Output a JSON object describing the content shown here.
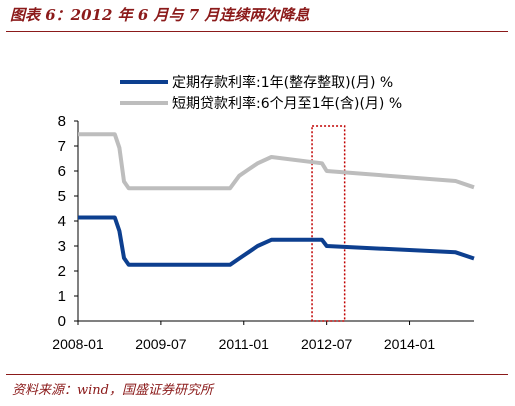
{
  "header": {
    "title": "图表 6：2012 年 6 月与 7 月连续两次降息"
  },
  "footer": {
    "source": "资料来源：wind，国盛证券研究所"
  },
  "colors": {
    "accent": "#8b1a1a",
    "deposit": "#0d3f8f",
    "loan": "#bdbdbd",
    "highlight": "#c00000"
  },
  "chart_data": {
    "type": "line",
    "ylim": [
      0,
      8
    ],
    "yticks": [
      "0",
      "1",
      "2",
      "3",
      "4",
      "5",
      "6",
      "7",
      "8"
    ],
    "xlim": [
      "2008-01",
      "2015-03"
    ],
    "xticks": [
      "2008-01",
      "2009-07",
      "2011-01",
      "2012-07",
      "2014-01"
    ],
    "grid": false,
    "legend": "top",
    "highlight_range": [
      "2012-06",
      "2012-07"
    ],
    "series": [
      {
        "name": "定期存款利率:1年(整存整取)(月) %",
        "color": "#0d3f8f",
        "points": [
          [
            "2008-01",
            4.14
          ],
          [
            "2008-09",
            4.14
          ],
          [
            "2008-10",
            3.6
          ],
          [
            "2008-11",
            2.52
          ],
          [
            "2008-12",
            2.25
          ],
          [
            "2010-10",
            2.25
          ],
          [
            "2010-12",
            2.5
          ],
          [
            "2011-02",
            2.75
          ],
          [
            "2011-04",
            3.0
          ],
          [
            "2011-07",
            3.25
          ],
          [
            "2012-06",
            3.25
          ],
          [
            "2012-07",
            3.0
          ],
          [
            "2014-11",
            2.75
          ],
          [
            "2015-03",
            2.5
          ]
        ]
      },
      {
        "name": "短期贷款利率:6个月至1年(含)(月) %",
        "color": "#bdbdbd",
        "points": [
          [
            "2008-01",
            7.47
          ],
          [
            "2008-09",
            7.47
          ],
          [
            "2008-10",
            6.93
          ],
          [
            "2008-11",
            5.58
          ],
          [
            "2008-12",
            5.31
          ],
          [
            "2010-10",
            5.31
          ],
          [
            "2010-12",
            5.81
          ],
          [
            "2011-02",
            6.06
          ],
          [
            "2011-04",
            6.31
          ],
          [
            "2011-07",
            6.56
          ],
          [
            "2012-06",
            6.31
          ],
          [
            "2012-07",
            6.0
          ],
          [
            "2014-11",
            5.6
          ],
          [
            "2015-03",
            5.35
          ]
        ]
      }
    ]
  }
}
